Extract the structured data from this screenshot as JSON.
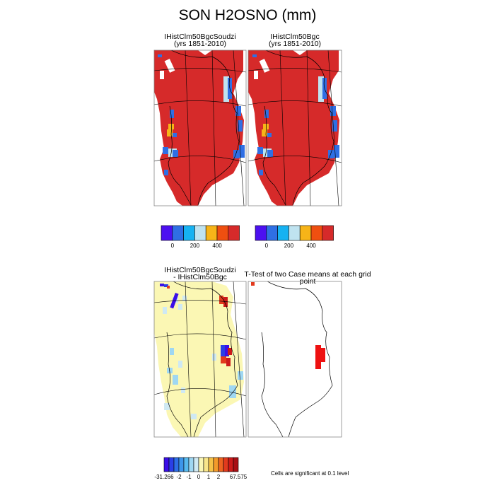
{
  "page": {
    "title": "SON H2OSNO (mm)"
  },
  "panels": {
    "top_left": {
      "title": "IHistClm50BgcSoudzi",
      "subtitle": "(yrs 1851-2010)"
    },
    "top_right": {
      "title": "IHistClm50Bgc",
      "subtitle": "(yrs 1851-2010)"
    },
    "bottom_left": {
      "title": "IHistClm50BgcSoudzi",
      "subtitle": "- IHistClm50Bgc"
    },
    "bottom_right": {
      "title": "T-Test of two Case means at each grid point"
    }
  },
  "note": "Cells are significant at 0.1 level",
  "chart_data": [
    {
      "type": "heatmap",
      "name_ref": "top_left",
      "colorbar": {
        "colors": [
          "#4c10f0",
          "#2f6fe4",
          "#16b2f2",
          "#bfe3f0",
          "#f7b418",
          "#ef4f10",
          "#d62a2a"
        ],
        "labels": [
          "0",
          "200",
          "400"
        ]
      }
    },
    {
      "type": "heatmap",
      "name_ref": "top_right",
      "colorbar": {
        "colors": [
          "#4c10f0",
          "#2f6fe4",
          "#16b2f2",
          "#bfe3f0",
          "#f7b418",
          "#ef4f10",
          "#d62a2a"
        ],
        "labels": [
          "0",
          "200",
          "400"
        ]
      }
    },
    {
      "type": "heatmap",
      "name_ref": "bottom_left",
      "colorbar": {
        "colors": [
          "#3a0ee8",
          "#2a3fe6",
          "#2d6ee6",
          "#3d96ea",
          "#56b9ee",
          "#9fd7f2",
          "#cfe9f3",
          "#fbf7b4",
          "#f9e68a",
          "#f6c248",
          "#f39a2a",
          "#ee6421",
          "#e23a1d",
          "#cc1a1a",
          "#a80e14"
        ],
        "labels": [
          "-31.266",
          "-2",
          "-1",
          "0",
          "1",
          "2",
          "67.575"
        ]
      }
    },
    {
      "type": "heatmap",
      "name_ref": "bottom_right"
    }
  ]
}
